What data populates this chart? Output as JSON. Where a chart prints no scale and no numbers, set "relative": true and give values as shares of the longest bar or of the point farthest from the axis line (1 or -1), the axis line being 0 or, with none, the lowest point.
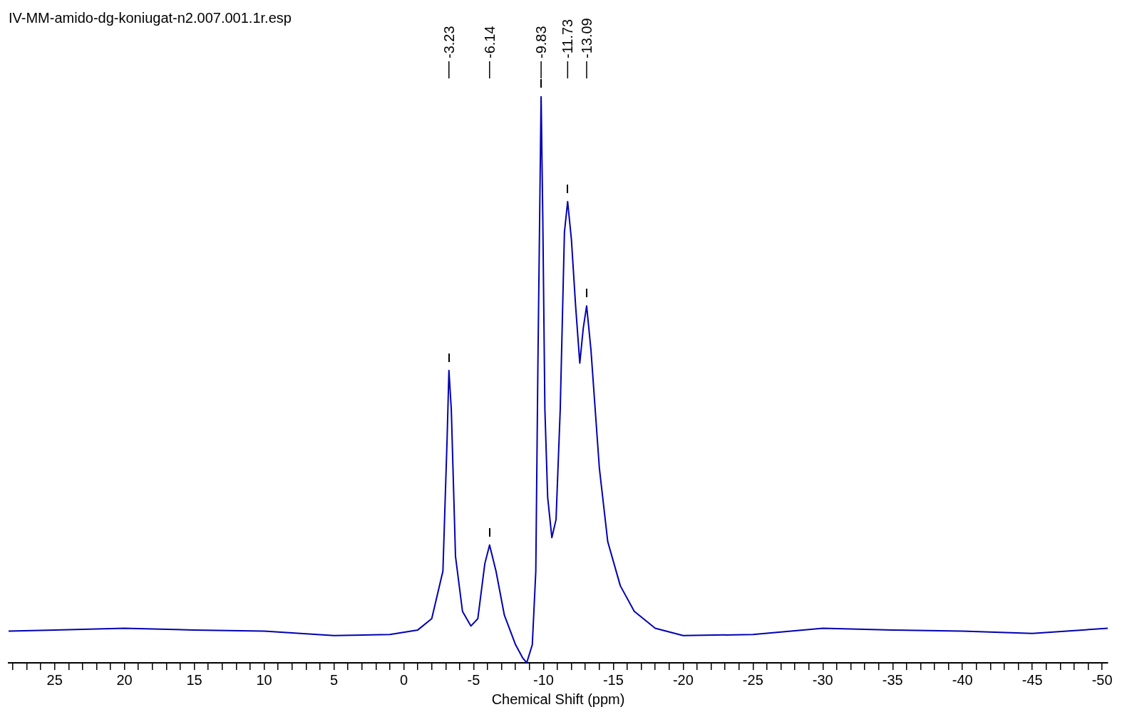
{
  "chart_data": {
    "type": "line",
    "title": "IV-MM-amido-dg-koniugat-n2.007.001.1r.esp",
    "xlabel": "Chemical Shift (ppm)",
    "relative": true,
    "color": "#0000b4",
    "legend": false,
    "grid": false,
    "marker": "none",
    "line_style": "solid",
    "xlim": [
      28.3,
      -50.4
    ],
    "xticks": [
      {
        "value": 28,
        "label": null
      },
      {
        "value": 27,
        "label": null
      },
      {
        "value": 26,
        "label": null
      },
      25,
      {
        "value": 24,
        "label": null
      },
      {
        "value": 23,
        "label": null
      },
      {
        "value": 22,
        "label": null
      },
      {
        "value": 21,
        "label": null
      },
      20,
      {
        "value": 19,
        "label": null
      },
      {
        "value": 18,
        "label": null
      },
      {
        "value": 17,
        "label": null
      },
      {
        "value": 16,
        "label": null
      },
      15,
      {
        "value": 14,
        "label": null
      },
      {
        "value": 13,
        "label": null
      },
      {
        "value": 12,
        "label": null
      },
      {
        "value": 11,
        "label": null
      },
      10,
      {
        "value": 9,
        "label": null
      },
      {
        "value": 8,
        "label": null
      },
      {
        "value": 7,
        "label": null
      },
      {
        "value": 6,
        "label": null
      },
      5,
      {
        "value": 4,
        "label": null
      },
      {
        "value": 3,
        "label": null
      },
      {
        "value": 2,
        "label": null
      },
      {
        "value": 1,
        "label": null
      },
      0,
      {
        "value": -1,
        "label": null
      },
      {
        "value": -2,
        "label": null
      },
      {
        "value": -3,
        "label": null
      },
      {
        "value": -4,
        "label": null
      },
      -5,
      {
        "value": -6,
        "label": null
      },
      {
        "value": -7,
        "label": null
      },
      {
        "value": -8,
        "label": null
      },
      {
        "value": -9,
        "label": null
      },
      -10,
      {
        "value": -11,
        "label": null
      },
      {
        "value": -12,
        "label": null
      },
      {
        "value": -13,
        "label": null
      },
      {
        "value": -14,
        "label": null
      },
      -15,
      {
        "value": -16,
        "label": null
      },
      {
        "value": -17,
        "label": null
      },
      {
        "value": -18,
        "label": null
      },
      {
        "value": -19,
        "label": null
      },
      -20,
      {
        "value": -21,
        "label": null
      },
      {
        "value": -22,
        "label": null
      },
      {
        "value": -23,
        "label": null
      },
      {
        "value": -24,
        "label": null
      },
      -25,
      {
        "value": -26,
        "label": null
      },
      {
        "value": -27,
        "label": null
      },
      {
        "value": -28,
        "label": null
      },
      {
        "value": -29,
        "label": null
      },
      -30,
      {
        "value": -31,
        "label": null
      },
      {
        "value": -32,
        "label": null
      },
      {
        "value": -33,
        "label": null
      },
      {
        "value": -34,
        "label": null
      },
      -35,
      {
        "value": -36,
        "label": null
      },
      {
        "value": -37,
        "label": null
      },
      {
        "value": -38,
        "label": null
      },
      {
        "value": -39,
        "label": null
      },
      -40,
      {
        "value": -41,
        "label": null
      },
      {
        "value": -42,
        "label": null
      },
      {
        "value": -43,
        "label": null
      },
      {
        "value": -44,
        "label": null
      },
      -45,
      {
        "value": -46,
        "label": null
      },
      {
        "value": -47,
        "label": null
      },
      {
        "value": -48,
        "label": null
      },
      {
        "value": -49,
        "label": null
      },
      -50
    ],
    "x": [
      28.3,
      25,
      20,
      15,
      10,
      5,
      1,
      -1,
      -2,
      -2.8,
      -3.1,
      -3.23,
      -3.4,
      -3.7,
      -4.2,
      -4.8,
      -5.3,
      -5.8,
      -6.14,
      -6.6,
      -7.2,
      -8,
      -8.5,
      -8.8,
      -9.2,
      -9.45,
      -9.6,
      -9.83,
      -9.95,
      -10.1,
      -10.3,
      -10.6,
      -10.9,
      -11.2,
      -11.5,
      -11.73,
      -12,
      -12.3,
      -12.6,
      -12.85,
      -13.09,
      -13.4,
      -14,
      -14.6,
      -15.5,
      -16.5,
      -18,
      -20,
      -25,
      -30,
      -35,
      -40,
      -45,
      -50.4
    ],
    "values": [
      0.056,
      0.058,
      0.061,
      0.058,
      0.056,
      0.048,
      0.05,
      0.058,
      0.078,
      0.162,
      0.396,
      0.516,
      0.447,
      0.188,
      0.091,
      0.065,
      0.078,
      0.175,
      0.208,
      0.162,
      0.084,
      0.032,
      0.009,
      0,
      0.032,
      0.162,
      0.526,
      1,
      0.786,
      0.448,
      0.292,
      0.221,
      0.253,
      0.448,
      0.76,
      0.814,
      0.747,
      0.63,
      0.529,
      0.591,
      0.63,
      0.552,
      0.344,
      0.214,
      0.136,
      0.091,
      0.061,
      0.048,
      0.05,
      0.061,
      0.058,
      0.056,
      0.052,
      0.061
    ],
    "annotations": [
      {
        "text": "-3.23",
        "x": -3.23
      },
      {
        "text": "-6.14",
        "x": -6.14
      },
      {
        "text": "-9.83",
        "x": -9.83
      },
      {
        "text": "-11.73",
        "x": -11.73
      },
      {
        "text": "-13.09",
        "x": -13.09
      }
    ]
  }
}
